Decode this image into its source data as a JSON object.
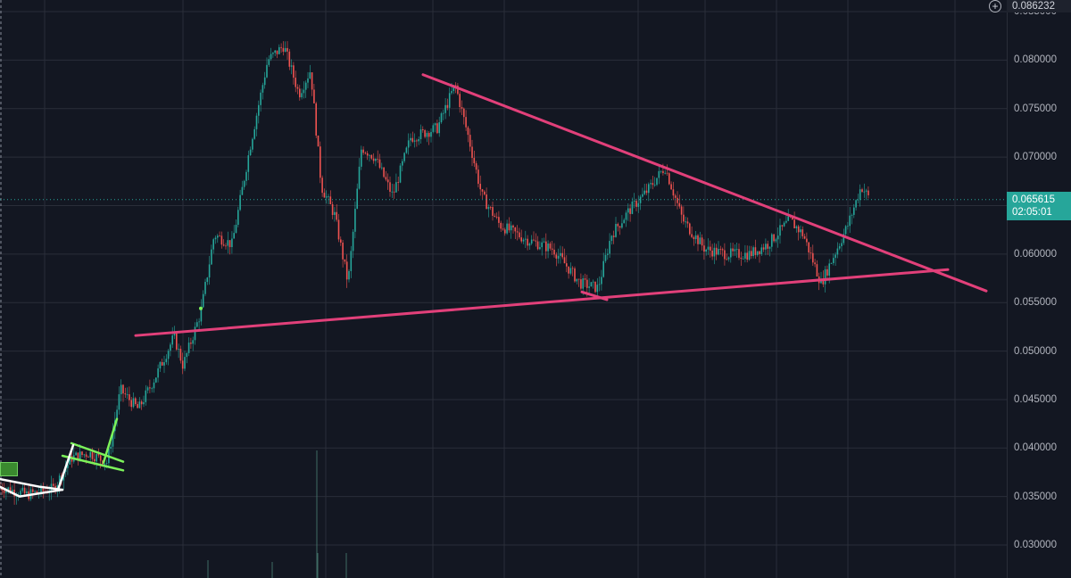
{
  "colors": {
    "background": "#131722",
    "grid": "#2a2e39",
    "up_candle": "#26a69a",
    "down_candle": "#ef5350",
    "trendline_pink": "#e2407a",
    "pattern_green": "#7cf25a",
    "pattern_white": "#ffffff"
  },
  "price_axis": {
    "top_price": "0.086232",
    "ticks": [
      "0.085000",
      "0.080000",
      "0.075000",
      "0.070000",
      "0.065000",
      "0.060000",
      "0.055000",
      "0.050000",
      "0.045000",
      "0.040000",
      "0.035000",
      "0.030000"
    ]
  },
  "current": {
    "price": "0.065615",
    "countdown": "02:05:01"
  },
  "chart_data": {
    "type": "candlestick",
    "ylim": [
      0.0266,
      0.0862
    ],
    "grid": true,
    "price_path": [
      [
        0,
        0.036
      ],
      [
        30,
        0.0352
      ],
      [
        60,
        0.0358
      ],
      [
        80,
        0.039
      ],
      [
        100,
        0.0395
      ],
      [
        120,
        0.0385
      ],
      [
        135,
        0.046
      ],
      [
        155,
        0.044
      ],
      [
        175,
        0.0475
      ],
      [
        195,
        0.0515
      ],
      [
        205,
        0.0485
      ],
      [
        225,
        0.054
      ],
      [
        240,
        0.062
      ],
      [
        260,
        0.061
      ],
      [
        280,
        0.071
      ],
      [
        300,
        0.08
      ],
      [
        318,
        0.0815
      ],
      [
        335,
        0.0765
      ],
      [
        348,
        0.079
      ],
      [
        360,
        0.067
      ],
      [
        375,
        0.064
      ],
      [
        390,
        0.057
      ],
      [
        405,
        0.071
      ],
      [
        420,
        0.07
      ],
      [
        440,
        0.066
      ],
      [
        460,
        0.072
      ],
      [
        490,
        0.073
      ],
      [
        510,
        0.0775
      ],
      [
        525,
        0.072
      ],
      [
        540,
        0.066
      ],
      [
        560,
        0.063
      ],
      [
        590,
        0.0615
      ],
      [
        620,
        0.0605
      ],
      [
        650,
        0.057
      ],
      [
        670,
        0.0565
      ],
      [
        685,
        0.062
      ],
      [
        705,
        0.0645
      ],
      [
        725,
        0.0665
      ],
      [
        745,
        0.069
      ],
      [
        765,
        0.0635
      ],
      [
        790,
        0.0605
      ],
      [
        815,
        0.06
      ],
      [
        840,
        0.06
      ],
      [
        860,
        0.061
      ],
      [
        885,
        0.0635
      ],
      [
        900,
        0.062
      ],
      [
        920,
        0.057
      ],
      [
        935,
        0.06
      ],
      [
        950,
        0.063
      ],
      [
        965,
        0.067
      ],
      [
        975,
        0.0656
      ]
    ],
    "drawings": [
      {
        "name": "support-trendline",
        "color": "pink",
        "points": [
          [
            152,
            0.0516
          ],
          [
            1062,
            0.0584
          ]
        ]
      },
      {
        "name": "resistance-trendline",
        "color": "pink",
        "points": [
          [
            474,
            0.0785
          ],
          [
            1105,
            0.0562
          ]
        ]
      },
      {
        "name": "mid-support-tick",
        "color": "pink",
        "points": [
          [
            652,
            0.0561
          ],
          [
            680,
            0.0553
          ]
        ]
      },
      {
        "name": "flag-upper",
        "color": "green",
        "points": [
          [
            80,
            0.0405
          ],
          [
            138,
            0.0386
          ]
        ]
      },
      {
        "name": "flag-lower",
        "color": "green",
        "points": [
          [
            70,
            0.0392
          ],
          [
            138,
            0.0377
          ]
        ]
      },
      {
        "name": "flag-breakout",
        "color": "green",
        "points": [
          [
            116,
            0.0385
          ],
          [
            131,
            0.043
          ]
        ]
      },
      {
        "name": "white-pattern-1",
        "color": "white",
        "points": [
          [
            0,
            0.036
          ],
          [
            22,
            0.035
          ],
          [
            70,
            0.0357
          ]
        ]
      },
      {
        "name": "white-pattern-2",
        "color": "white",
        "points": [
          [
            0,
            0.0368
          ],
          [
            45,
            0.036
          ],
          [
            70,
            0.0357
          ]
        ]
      },
      {
        "name": "white-pattern-3",
        "color": "white",
        "points": [
          [
            65,
            0.0357
          ],
          [
            82,
            0.0403
          ]
        ]
      }
    ]
  }
}
